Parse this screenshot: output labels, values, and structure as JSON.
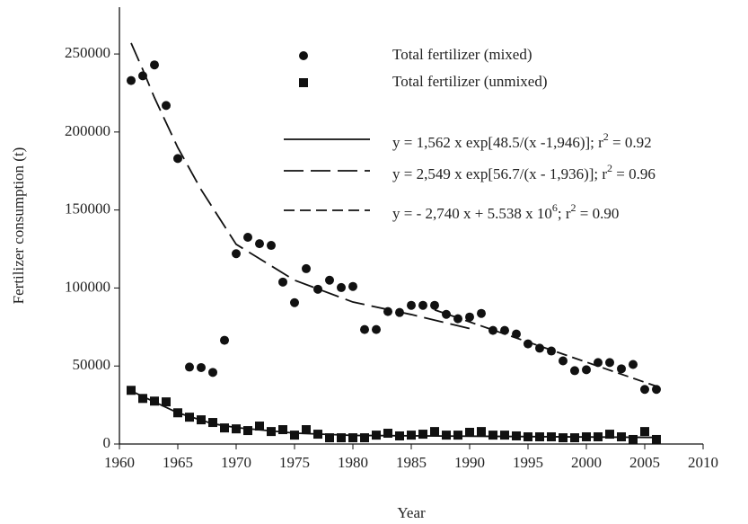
{
  "chart_data": {
    "type": "scatter",
    "x_label": "Year",
    "y_label": "Fertilizer consumption (t)",
    "xlim": [
      1960,
      2010
    ],
    "xticks": [
      1960,
      1965,
      1970,
      1975,
      1980,
      1985,
      1990,
      1995,
      2000,
      2005,
      2010
    ],
    "ylim": [
      0,
      280000
    ],
    "yticks": [
      0,
      50000,
      100000,
      150000,
      200000,
      250000
    ],
    "series": [
      {
        "name": [
          "Total fertilizer (mixed)"
        ],
        "marker": "circle",
        "color": "#111",
        "x": [
          1961,
          1962,
          1963,
          1964,
          1965,
          1966,
          1967,
          1968,
          1969,
          1970,
          1971,
          1972,
          1973,
          1974,
          1975,
          1976,
          1977,
          1978,
          1979,
          1980,
          1981,
          1982,
          1983,
          1984,
          1985,
          1986,
          1987,
          1988,
          1989,
          1990,
          1991,
          1992,
          1993,
          1994,
          1995,
          1996,
          1997,
          1998,
          1999,
          2000,
          2001,
          2002,
          2003,
          2004,
          2005,
          2006
        ],
        "values": [
          233000,
          236000,
          243000,
          217000,
          183000,
          49300,
          49000,
          45900,
          66500,
          122000,
          132500,
          128400,
          127300,
          103800,
          90600,
          112400,
          99200,
          105000,
          100300,
          101000,
          73400,
          73400,
          84900,
          84300,
          88900,
          88900,
          88900,
          83100,
          80300,
          81400,
          83700,
          72800,
          72800,
          70500,
          64200,
          61400,
          59600,
          53300,
          47000,
          47600,
          52200,
          52200,
          48200,
          51000,
          35000,
          35000
        ]
      },
      {
        "name": [
          "Total fertilizer (unmixed)"
        ],
        "marker": "square",
        "color": "#111",
        "x": [
          1961,
          1962,
          1963,
          1964,
          1965,
          1966,
          1967,
          1968,
          1969,
          1970,
          1971,
          1972,
          1973,
          1974,
          1975,
          1976,
          1977,
          1978,
          1979,
          1980,
          1981,
          1982,
          1983,
          1984,
          1985,
          1986,
          1987,
          1988,
          1989,
          1990,
          1991,
          1992,
          1993,
          1994,
          1995,
          1996,
          1997,
          1998,
          1999,
          2000,
          2001,
          2002,
          2003,
          2004,
          2005,
          2006
        ],
        "values": [
          34400,
          29200,
          27500,
          27000,
          20000,
          17200,
          15500,
          13800,
          10300,
          9700,
          8600,
          11500,
          8000,
          9200,
          5700,
          9200,
          6300,
          4000,
          4000,
          4000,
          4000,
          5700,
          6900,
          5200,
          5700,
          6300,
          8000,
          5700,
          5700,
          7500,
          8000,
          5700,
          5700,
          5200,
          4600,
          4600,
          4600,
          4000,
          4000,
          4600,
          4600,
          6300,
          4600,
          2900,
          8000,
          2900
        ]
      },
      {
        "name": [
          "y = 1,562 x exp[48.5/(x -1,946)]; r",
          "2",
          " = 0.92"
        ],
        "line": "solid",
        "color": "#111",
        "x": [
          1961,
          1963,
          1965,
          1968,
          1970,
          1975,
          1980,
          1990,
          2000,
          2006
        ],
        "values": [
          34000,
          27000,
          20000,
          13000,
          10500,
          7000,
          5500,
          5000,
          4500,
          4200
        ]
      },
      {
        "name": [
          "y = 2,549 x exp[56.7/(x - 1,936)]; r",
          "2",
          " = 0.96"
        ],
        "line": "long-dash",
        "color": "#111",
        "x": [
          1961,
          1962,
          1963,
          1965,
          1967,
          1970,
          1975,
          1980,
          1985,
          1990
        ],
        "values": [
          257000,
          240000,
          222000,
          190000,
          163000,
          128000,
          105000,
          91000,
          83000,
          74000
        ]
      },
      {
        "name": [
          "y = - 2,740 x + 5.538 x 10",
          "6",
          "; r",
          "2",
          " = 0.90"
        ],
        "line": "short-dash",
        "color": "#111",
        "x": [
          1987,
          2006
        ],
        "values": [
          86000,
          37000
        ]
      }
    ]
  }
}
